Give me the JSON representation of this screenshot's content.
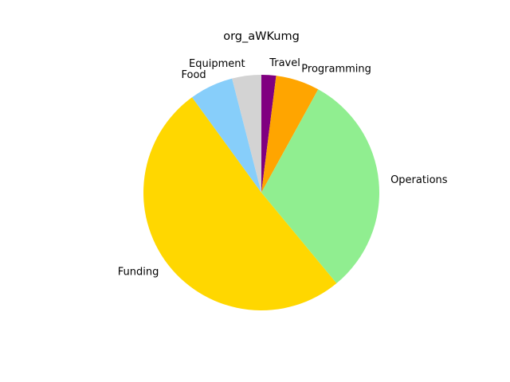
{
  "chart_data": {
    "type": "pie",
    "title": "org_aWKumg",
    "start_angle_deg": 90,
    "direction": "clockwise",
    "slices": [
      {
        "label": "Travel",
        "value": 2,
        "color": "#800080"
      },
      {
        "label": "Programming",
        "value": 6,
        "color": "#FFA500"
      },
      {
        "label": "Operations",
        "value": 31,
        "color": "#90EE90"
      },
      {
        "label": "Funding",
        "value": 51,
        "color": "#FFD700"
      },
      {
        "label": "Food",
        "value": 6,
        "color": "#87CEFA"
      },
      {
        "label": "Equipment",
        "value": 4,
        "color": "#D3D3D3"
      }
    ]
  }
}
